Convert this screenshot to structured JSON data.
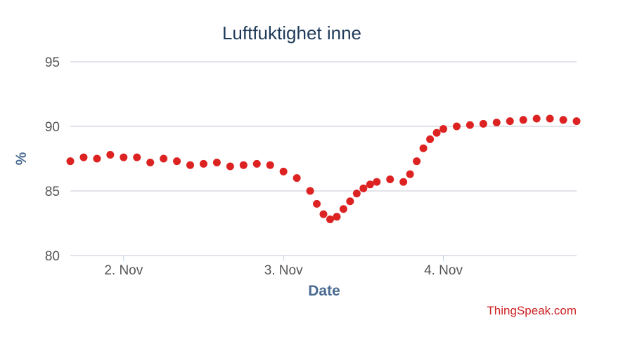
{
  "chart_data": {
    "type": "scatter",
    "title": "Luftfuktighet inne",
    "xlabel": "Date",
    "ylabel": "%",
    "ylim": [
      80,
      95
    ],
    "xlim": [
      "2024-11-01T16:00",
      "2024-11-04T20:00"
    ],
    "y_ticks": [
      "95",
      "90",
      "85",
      "80"
    ],
    "x_ticks": [
      {
        "label": "2. Nov",
        "at": "2024-11-02T00:00"
      },
      {
        "label": "3. Nov",
        "at": "2024-11-03T00:00"
      },
      {
        "label": "4. Nov",
        "at": "2024-11-04T00:00"
      }
    ],
    "grid": true,
    "legend": false,
    "color": "#dd2222",
    "series": [
      {
        "points": [
          [
            "2024-11-01T16:00",
            87.3
          ],
          [
            "2024-11-01T18:00",
            87.6
          ],
          [
            "2024-11-01T20:00",
            87.5
          ],
          [
            "2024-11-01T22:00",
            87.8
          ],
          [
            "2024-11-02T00:00",
            87.6
          ],
          [
            "2024-11-02T02:00",
            87.6
          ],
          [
            "2024-11-02T04:00",
            87.2
          ],
          [
            "2024-11-02T06:00",
            87.5
          ],
          [
            "2024-11-02T08:00",
            87.3
          ],
          [
            "2024-11-02T10:00",
            87.0
          ],
          [
            "2024-11-02T12:00",
            87.1
          ],
          [
            "2024-11-02T14:00",
            87.2
          ],
          [
            "2024-11-02T16:00",
            86.9
          ],
          [
            "2024-11-02T18:00",
            87.0
          ],
          [
            "2024-11-02T20:00",
            87.1
          ],
          [
            "2024-11-02T22:00",
            87.0
          ],
          [
            "2024-11-03T00:00",
            86.5
          ],
          [
            "2024-11-03T02:00",
            86.0
          ],
          [
            "2024-11-03T04:00",
            85.0
          ],
          [
            "2024-11-03T05:00",
            84.0
          ],
          [
            "2024-11-03T06:00",
            83.2
          ],
          [
            "2024-11-03T07:00",
            82.8
          ],
          [
            "2024-11-03T08:00",
            83.0
          ],
          [
            "2024-11-03T09:00",
            83.6
          ],
          [
            "2024-11-03T10:00",
            84.2
          ],
          [
            "2024-11-03T11:00",
            84.8
          ],
          [
            "2024-11-03T12:00",
            85.2
          ],
          [
            "2024-11-03T13:00",
            85.5
          ],
          [
            "2024-11-03T14:00",
            85.7
          ],
          [
            "2024-11-03T16:00",
            85.9
          ],
          [
            "2024-11-03T18:00",
            85.7
          ],
          [
            "2024-11-03T19:00",
            86.3
          ],
          [
            "2024-11-03T20:00",
            87.3
          ],
          [
            "2024-11-03T21:00",
            88.3
          ],
          [
            "2024-11-03T22:00",
            89.0
          ],
          [
            "2024-11-03T23:00",
            89.5
          ],
          [
            "2024-11-04T00:00",
            89.8
          ],
          [
            "2024-11-04T02:00",
            90.0
          ],
          [
            "2024-11-04T04:00",
            90.1
          ],
          [
            "2024-11-04T06:00",
            90.2
          ],
          [
            "2024-11-04T08:00",
            90.3
          ],
          [
            "2024-11-04T10:00",
            90.4
          ],
          [
            "2024-11-04T12:00",
            90.5
          ],
          [
            "2024-11-04T14:00",
            90.6
          ],
          [
            "2024-11-04T16:00",
            90.6
          ],
          [
            "2024-11-04T18:00",
            90.5
          ],
          [
            "2024-11-04T20:00",
            90.4
          ]
        ]
      }
    ]
  },
  "credit": "ThingSpeak.com"
}
